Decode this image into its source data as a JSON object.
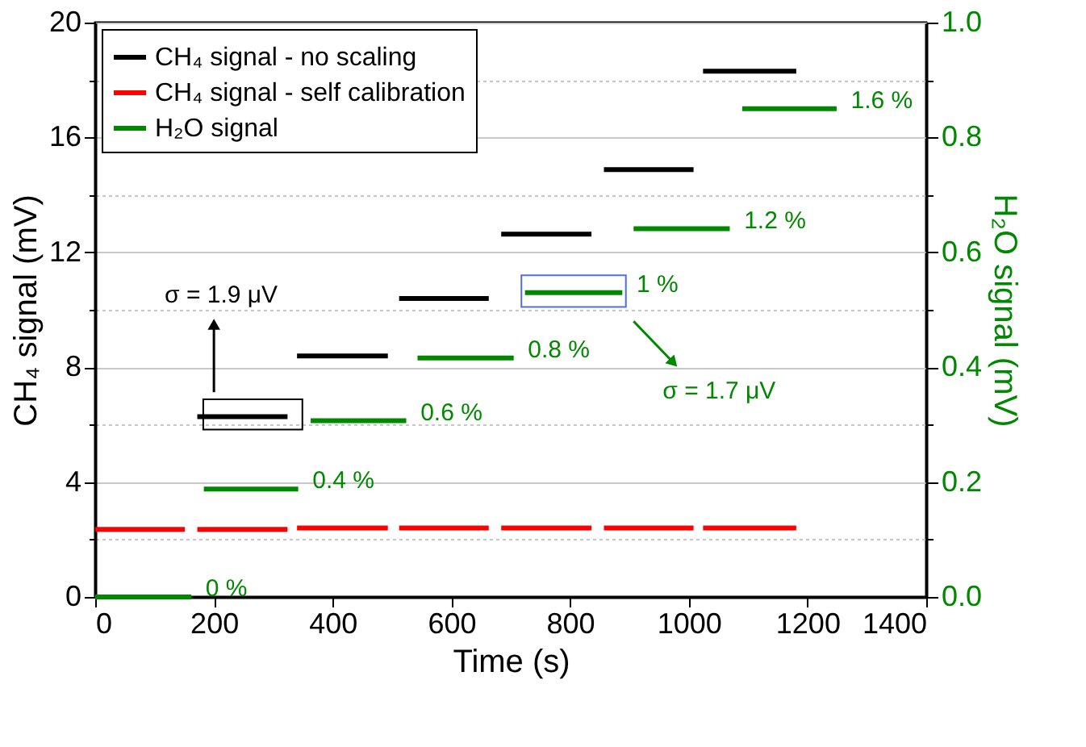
{
  "chart_data": {
    "type": "line",
    "xlabel": "Time (s)",
    "ylabel": "CH₄ signal (mV)",
    "y2label": "H₂O signal (mV)",
    "xlim": [
      0,
      1400
    ],
    "xticks": [
      0,
      200,
      400,
      600,
      800,
      1000,
      1200,
      1400
    ],
    "ylim": [
      0,
      20
    ],
    "yticks": [
      0,
      {
        "value": 2,
        "label": null
      },
      4,
      {
        "value": 6,
        "label": null
      },
      8,
      {
        "value": 10,
        "label": null
      },
      12,
      {
        "value": 14,
        "label": null
      },
      16,
      {
        "value": 18,
        "label": null
      },
      20
    ],
    "y2lim": [
      0,
      1.0
    ],
    "y2ticks": [
      {
        "value": 0,
        "label": "0.0"
      },
      {
        "value": 0.1,
        "label": null
      },
      0.2,
      {
        "value": 0.3,
        "label": null
      },
      0.4,
      {
        "value": 0.5,
        "label": null
      },
      0.6,
      {
        "value": 0.7,
        "label": null
      },
      0.8,
      {
        "value": 0.9,
        "label": null
      },
      {
        "value": 1.0,
        "label": "1.0"
      }
    ],
    "grid": "y",
    "legend": "top left",
    "line_style": "solid",
    "series": [
      {
        "name": "CH₄ signal - no scaling",
        "color": "#000000",
        "x": [
          172,
          324,
          332,
          340,
          493,
          502,
          512,
          663,
          673,
          684,
          836,
          846,
          857,
          1008,
          1016,
          1024,
          1181
        ],
        "values": [
          6.28,
          6.28,
          null,
          8.39,
          8.39,
          null,
          10.39,
          10.39,
          null,
          12.63,
          12.63,
          null,
          14.88,
          14.88,
          null,
          18.31,
          18.31
        ]
      },
      {
        "name": "CH₄ signal - self calibration",
        "color": "#ff0000",
        "x": [
          0,
          151,
          160,
          172,
          324,
          332,
          340,
          493,
          502,
          512,
          663,
          673,
          684,
          836,
          846,
          857,
          1008,
          1016,
          1024,
          1181
        ],
        "values": [
          2.35,
          2.35,
          null,
          2.35,
          2.35,
          null,
          2.4,
          2.4,
          null,
          2.4,
          2.4,
          null,
          2.4,
          2.4,
          null,
          2.4,
          2.4,
          null,
          2.4,
          2.4
        ]
      },
      {
        "name": "H₂O signal",
        "color": "#008800",
        "axis": "y2",
        "x": [
          0,
          162,
          172,
          183,
          342,
          352,
          363,
          524,
          534,
          543,
          705,
          714,
          724,
          888,
          897,
          907,
          1069,
          1080,
          1090,
          1249
        ],
        "values": [
          0,
          0,
          null,
          0.188,
          0.188,
          null,
          0.307,
          0.307,
          null,
          0.416,
          0.416,
          null,
          0.53,
          0.53,
          null,
          0.641,
          0.641,
          null,
          0.85,
          0.85
        ]
      }
    ],
    "annotations": [
      "0 %",
      "0.4 %",
      "0.6 %",
      "0.8 %",
      "1 %",
      "1.2 %",
      "1.6 %",
      "σ = 1.9 μV",
      "σ = 1.7 μV"
    ]
  }
}
